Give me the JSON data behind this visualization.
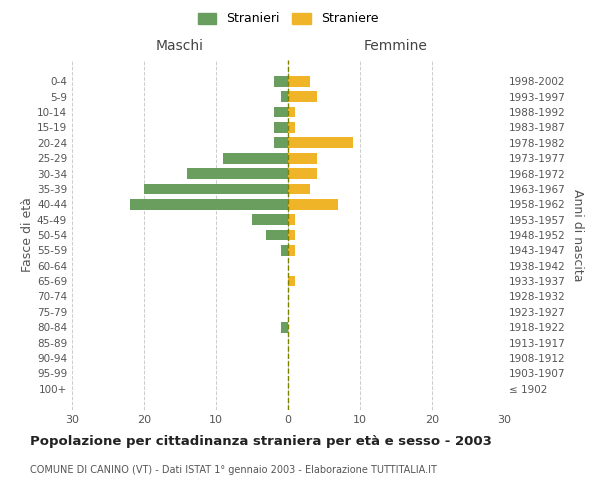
{
  "age_groups": [
    "100+",
    "95-99",
    "90-94",
    "85-89",
    "80-84",
    "75-79",
    "70-74",
    "65-69",
    "60-64",
    "55-59",
    "50-54",
    "45-49",
    "40-44",
    "35-39",
    "30-34",
    "25-29",
    "20-24",
    "15-19",
    "10-14",
    "5-9",
    "0-4"
  ],
  "birth_years": [
    "≤ 1902",
    "1903-1907",
    "1908-1912",
    "1913-1917",
    "1918-1922",
    "1923-1927",
    "1928-1932",
    "1933-1937",
    "1938-1942",
    "1943-1947",
    "1948-1952",
    "1953-1957",
    "1958-1962",
    "1963-1967",
    "1968-1972",
    "1973-1977",
    "1978-1982",
    "1983-1987",
    "1988-1992",
    "1993-1997",
    "1998-2002"
  ],
  "maschi": [
    0,
    0,
    0,
    0,
    1,
    0,
    0,
    0,
    0,
    1,
    3,
    5,
    22,
    20,
    14,
    9,
    2,
    2,
    2,
    1,
    2
  ],
  "femmine": [
    0,
    0,
    0,
    0,
    0,
    0,
    0,
    1,
    0,
    1,
    1,
    1,
    7,
    3,
    4,
    4,
    9,
    1,
    1,
    4,
    3
  ],
  "male_color": "#6a9e5e",
  "female_color": "#f0b429",
  "center_line_color": "#7f7f00",
  "grid_color": "#cccccc",
  "title": "Popolazione per cittadinanza straniera per età e sesso - 2003",
  "subtitle": "COMUNE DI CANINO (VT) - Dati ISTAT 1° gennaio 2003 - Elaborazione TUTTITALIA.IT",
  "xlabel_left": "Maschi",
  "xlabel_right": "Femmine",
  "ylabel_left": "Fasce di età",
  "ylabel_right": "Anni di nascita",
  "legend_stranieri": "Stranieri",
  "legend_straniere": "Straniere",
  "xlim": 30,
  "background_color": "#ffffff"
}
